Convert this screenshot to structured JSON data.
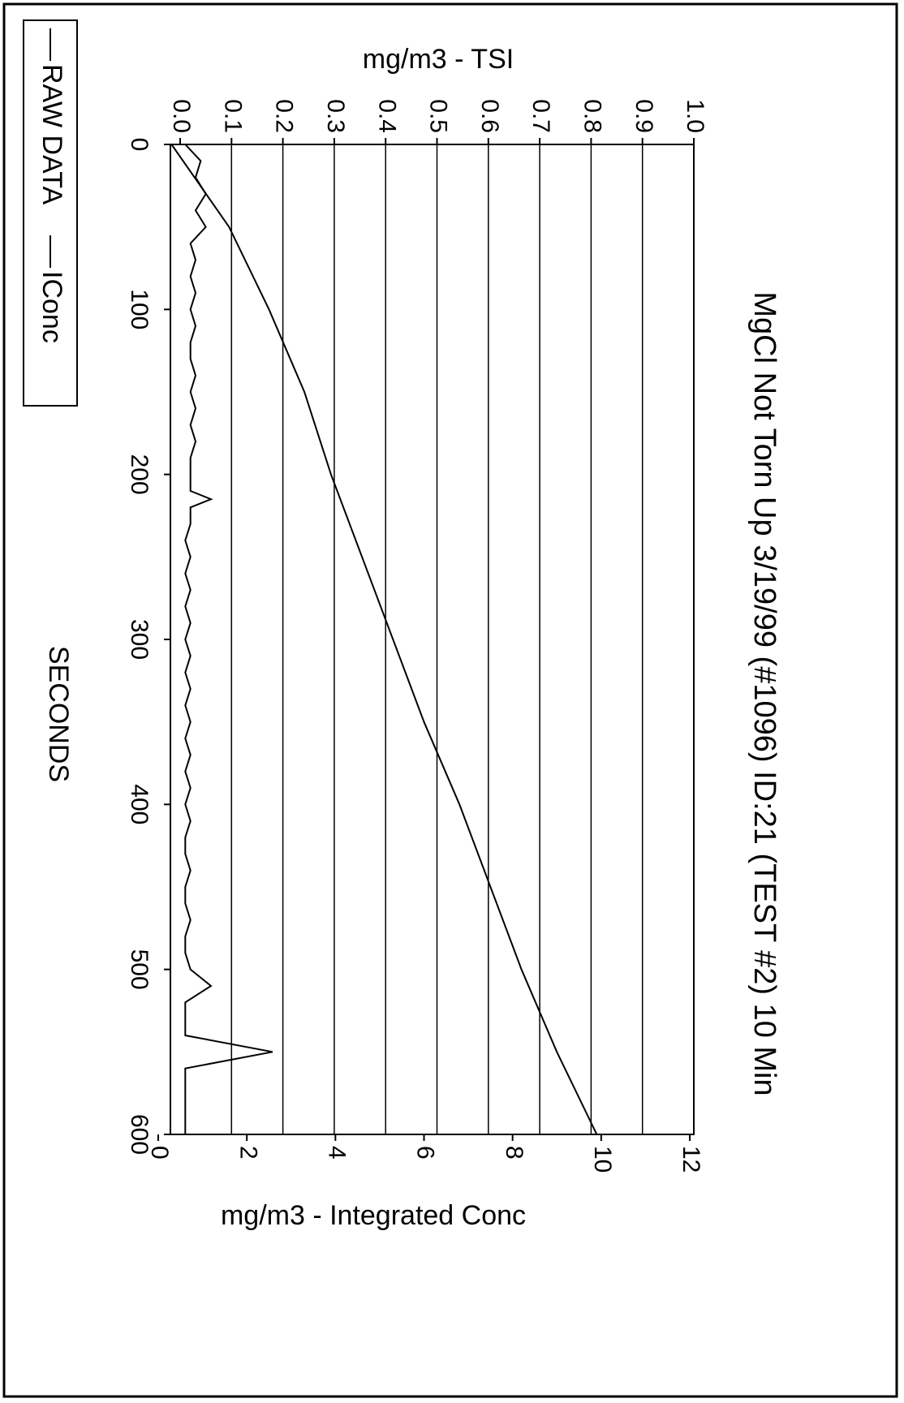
{
  "chart_data": {
    "type": "line",
    "title": "MgCl Not Torn Up 3/19/99 (#1096) ID:21 (TEST #2) 10 Min",
    "x_label": "SECONDS",
    "y_label": "mg/m3 - TSI",
    "y2_label": "mg/m3 - Integrated Conc",
    "xlim": [
      0,
      600
    ],
    "xticks": [
      0,
      100,
      200,
      300,
      400,
      500,
      600
    ],
    "ylim": [
      0,
      1
    ],
    "yticks": [
      {
        "value": 0,
        "label": "0.0"
      },
      0.1,
      0.2,
      0.3,
      0.4,
      0.5,
      0.6,
      0.7,
      0.8,
      0.9,
      {
        "value": 1,
        "label": "1.0"
      }
    ],
    "y2lim": [
      0,
      12
    ],
    "y2ticks": [
      0,
      2,
      4,
      6,
      8,
      10,
      12
    ],
    "grid": true,
    "legend": "bottom-left",
    "series": [
      {
        "name": "RAW DATA",
        "color": "#000000",
        "x": [
          0,
          10,
          20,
          30,
          40,
          50,
          60,
          70,
          80,
          90,
          100,
          110,
          120,
          130,
          140,
          150,
          160,
          170,
          180,
          190,
          200,
          210,
          215,
          220,
          230,
          240,
          250,
          260,
          270,
          280,
          290,
          300,
          310,
          320,
          330,
          340,
          350,
          360,
          370,
          380,
          390,
          400,
          410,
          420,
          430,
          440,
          450,
          460,
          470,
          480,
          490,
          500,
          510,
          520,
          530,
          540,
          550,
          560,
          570,
          580,
          590,
          600
        ],
        "values": [
          0.01,
          0.04,
          0.03,
          0.05,
          0.03,
          0.05,
          0.02,
          0.03,
          0.02,
          0.03,
          0.02,
          0.03,
          0.02,
          0.02,
          0.03,
          0.02,
          0.03,
          0.02,
          0.03,
          0.02,
          0.02,
          0.02,
          0.06,
          0.02,
          0.02,
          0.01,
          0.02,
          0.01,
          0.02,
          0.01,
          0.02,
          0.01,
          0.02,
          0.01,
          0.02,
          0.01,
          0.02,
          0.01,
          0.02,
          0.01,
          0.02,
          0.01,
          0.02,
          0.01,
          0.01,
          0.02,
          0.01,
          0.01,
          0.02,
          0.01,
          0.01,
          0.02,
          0.06,
          0.01,
          0.01,
          0.01,
          0.18,
          0.01,
          0.01,
          0.01,
          0.01,
          0.01
        ]
      },
      {
        "name": "IConc",
        "color": "#000000",
        "axis": "y2",
        "x": [
          0,
          50,
          100,
          150,
          200,
          250,
          300,
          350,
          400,
          450,
          500,
          550,
          600
        ],
        "values": [
          0.3,
          1.6,
          2.5,
          3.3,
          3.9,
          4.6,
          5.3,
          6.0,
          6.8,
          7.5,
          8.2,
          9.0,
          9.9
        ]
      }
    ]
  }
}
